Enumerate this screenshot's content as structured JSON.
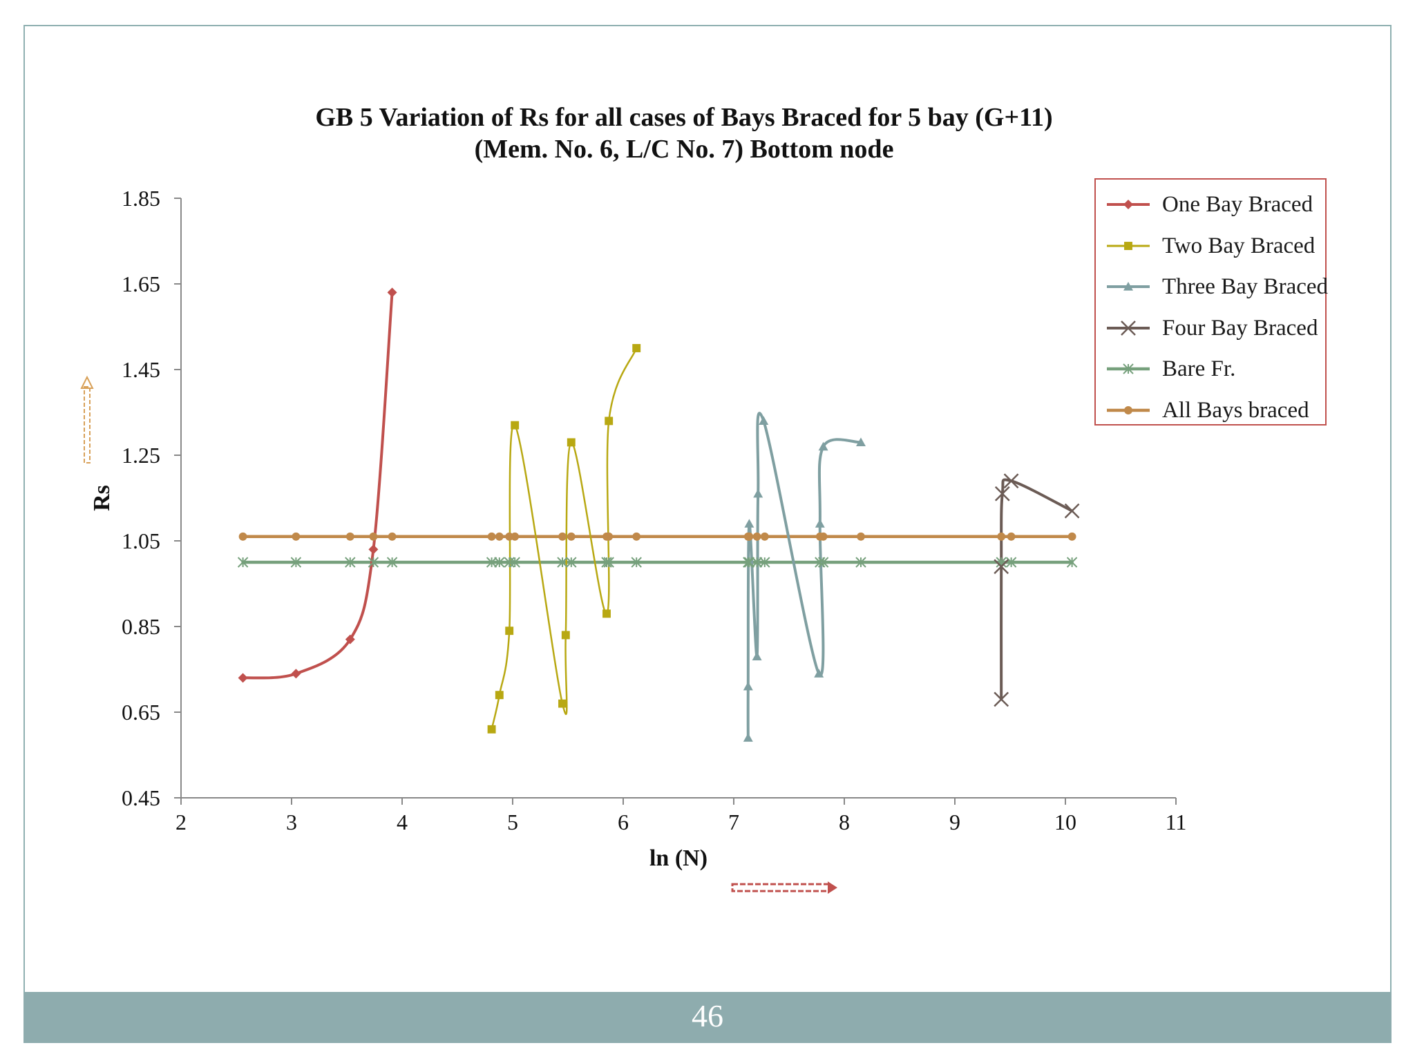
{
  "page_number": "46",
  "chart_data": {
    "type": "line",
    "title_line1": "GB 5 Variation of Rs for all cases of Bays Braced for 5 bay (G+11)",
    "title_line2": "(Mem. No. 6, L/C No. 7) Bottom node",
    "xlabel": "ln (N)",
    "ylabel": "Rs",
    "xlim": [
      2,
      11
    ],
    "ylim": [
      0.45,
      1.85
    ],
    "x_ticks": [
      "2",
      "3",
      "4",
      "5",
      "6",
      "7",
      "8",
      "9",
      "10",
      "11"
    ],
    "y_ticks": [
      "0.45",
      "0.65",
      "0.85",
      "1.05",
      "1.25",
      "1.45",
      "1.65",
      "1.85"
    ],
    "x_tick_values": [
      2,
      3,
      4,
      5,
      6,
      7,
      8,
      9,
      10,
      11
    ],
    "y_tick_values": [
      0.45,
      0.65,
      0.85,
      1.05,
      1.25,
      1.45,
      1.65,
      1.85
    ],
    "legend_position": "top-right",
    "series": [
      {
        "name": "One Bay Braced",
        "color": "#c0504d",
        "marker": "diamond",
        "width": 4,
        "x": [
          2.56,
          3.04,
          3.53,
          3.74,
          3.91
        ],
        "y": [
          0.73,
          0.74,
          0.82,
          1.03,
          1.63
        ]
      },
      {
        "name": "Two Bay Braced",
        "color": "#b8a812",
        "marker": "square",
        "width": 2.5,
        "x": [
          4.81,
          4.88,
          4.97,
          5.02,
          5.45,
          5.48,
          5.53,
          5.85,
          5.87,
          6.12
        ],
        "y": [
          0.61,
          0.69,
          0.84,
          1.32,
          0.67,
          0.83,
          1.28,
          0.88,
          1.33,
          1.5
        ]
      },
      {
        "name": "Three Bay Braced",
        "color": "#7f9fa1",
        "marker": "triangle",
        "width": 4,
        "x": [
          7.13,
          7.13,
          7.14,
          7.21,
          7.22,
          7.27,
          7.77,
          7.78,
          7.81,
          8.15
        ],
        "y": [
          0.59,
          0.71,
          1.09,
          0.78,
          1.16,
          1.33,
          0.74,
          1.09,
          1.27,
          1.28
        ]
      },
      {
        "name": "Four Bay Braced",
        "color": "#6b5b55",
        "marker": "x",
        "width": 4,
        "x": [
          9.42,
          9.42,
          9.43,
          9.51,
          10.06
        ],
        "y": [
          0.68,
          0.99,
          1.16,
          1.19,
          1.12
        ]
      },
      {
        "name": "Bare Fr.",
        "color": "#76a07c",
        "marker": "star",
        "width": 4.5,
        "x": [
          2.56,
          3.04,
          3.53,
          3.74,
          3.91,
          4.81,
          4.88,
          4.97,
          5.02,
          5.45,
          5.53,
          5.85,
          5.87,
          6.12,
          7.13,
          7.14,
          7.21,
          7.28,
          7.78,
          7.81,
          8.15,
          9.42,
          9.51,
          10.06
        ],
        "y": [
          1.0,
          1.0,
          1.0,
          1.0,
          1.0,
          1.0,
          1.0,
          1.0,
          1.0,
          1.0,
          1.0,
          1.0,
          1.0,
          1.0,
          1.0,
          1.0,
          1.0,
          1.0,
          1.0,
          1.0,
          1.0,
          1.0,
          1.0,
          1.0
        ]
      },
      {
        "name": "All Bays braced",
        "color": "#c0894a",
        "marker": "circle",
        "width": 4.5,
        "x": [
          2.56,
          3.04,
          3.53,
          3.74,
          3.91,
          4.81,
          4.88,
          4.97,
          5.02,
          5.45,
          5.53,
          5.85,
          5.87,
          6.12,
          7.13,
          7.14,
          7.21,
          7.28,
          7.78,
          7.81,
          8.15,
          9.42,
          9.51,
          10.06
        ],
        "y": [
          1.06,
          1.06,
          1.06,
          1.06,
          1.06,
          1.06,
          1.06,
          1.06,
          1.06,
          1.06,
          1.06,
          1.06,
          1.06,
          1.06,
          1.06,
          1.06,
          1.06,
          1.06,
          1.06,
          1.06,
          1.06,
          1.06,
          1.06,
          1.06
        ]
      }
    ]
  }
}
